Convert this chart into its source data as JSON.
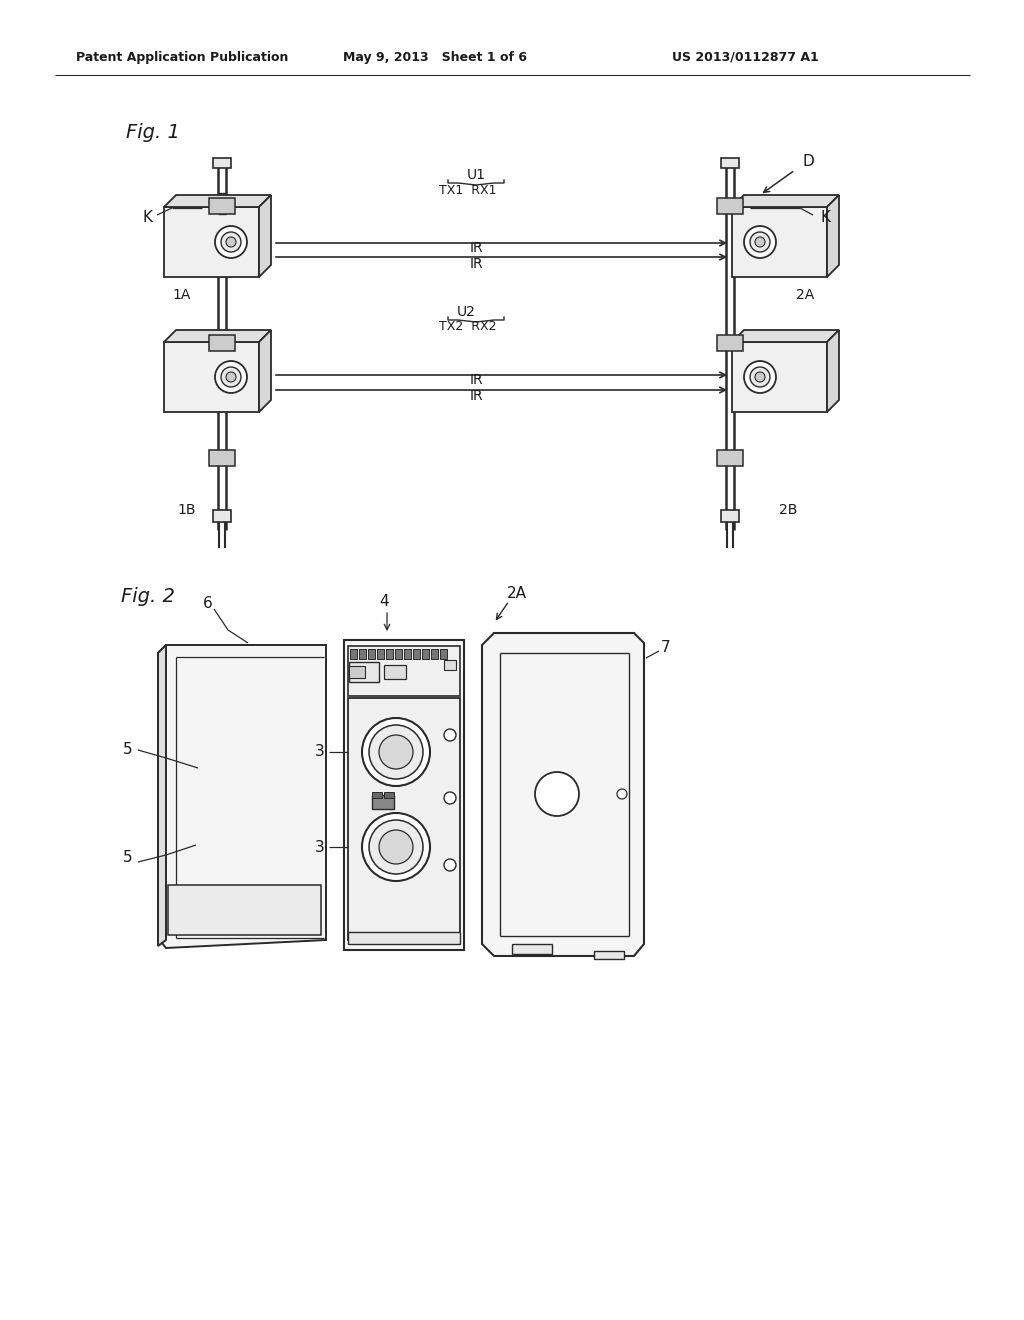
{
  "background_color": "#ffffff",
  "page_width": 10.24,
  "page_height": 13.2,
  "header_text": "Patent Application Publication",
  "header_date": "May 9, 2013   Sheet 1 of 6",
  "header_patent": "US 2013/0112877 A1",
  "line_color": "#2a2a2a",
  "text_color": "#1a1a1a"
}
